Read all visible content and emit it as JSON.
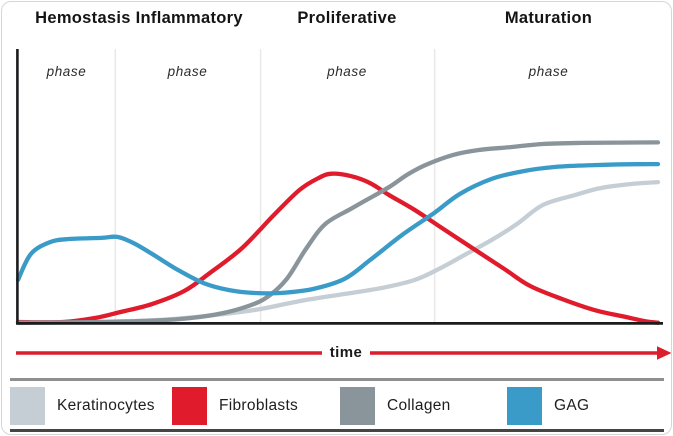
{
  "header": {
    "titles": [
      {
        "label": "Hemostasis Inflammatory"
      },
      {
        "label": "Proliferative"
      },
      {
        "label": "Maturation"
      }
    ],
    "phase_sublabels": [
      "phase",
      "phase",
      "phase",
      "phase"
    ]
  },
  "time_axis": {
    "label": "time",
    "arrow_color": "#da1e2c"
  },
  "legend": [
    {
      "label": "Keratinocytes",
      "color": "#c5ced4"
    },
    {
      "label": "Fibroblasts",
      "color": "#e01b2c"
    },
    {
      "label": "Collagen",
      "color": "#8a949b"
    },
    {
      "label": "GAG",
      "color": "#3a9bc8"
    }
  ],
  "colors": {
    "axis": "#1c1c1e",
    "phase_divider": "#e9e9e9",
    "separator_top": "#8f8f8f",
    "separator_bottom": "#454545",
    "card_border": "#d6d6d6"
  },
  "chart_data": {
    "type": "line",
    "title": "",
    "xlabel": "time",
    "ylabel": "",
    "x_range": [
      0,
      100
    ],
    "y_range": [
      0,
      100
    ],
    "grid": false,
    "legend_position": "bottom",
    "phases": [
      "Hemostasis",
      "Inflammatory",
      "Proliferative",
      "Maturation"
    ],
    "phase_boundaries_x": [
      15.2,
      37.9,
      65.1
    ],
    "draw_order": [
      "Keratinocytes",
      "Fibroblasts",
      "Collagen",
      "GAG"
    ],
    "series": [
      {
        "name": "Keratinocytes",
        "points": [
          [
            0,
            0
          ],
          [
            8,
            0.3
          ],
          [
            16,
            0.6
          ],
          [
            24,
            1.5
          ],
          [
            32,
            3.4
          ],
          [
            38,
            5.4
          ],
          [
            44,
            8.4
          ],
          [
            51,
            11.1
          ],
          [
            57,
            13.5
          ],
          [
            62,
            16.5
          ],
          [
            66,
            21
          ],
          [
            70,
            26.4
          ],
          [
            74,
            31.8
          ],
          [
            78,
            38
          ],
          [
            82,
            45.2
          ],
          [
            87,
            49
          ],
          [
            91,
            51.7
          ],
          [
            96,
            53.3
          ],
          [
            100,
            54
          ]
        ]
      },
      {
        "name": "Fibroblasts",
        "points": [
          [
            0,
            0.4
          ],
          [
            7,
            0.4
          ],
          [
            12,
            1.9
          ],
          [
            16,
            4.2
          ],
          [
            21,
            7.3
          ],
          [
            26,
            12.3
          ],
          [
            30,
            19.2
          ],
          [
            35,
            28.7
          ],
          [
            40,
            41.4
          ],
          [
            44,
            51
          ],
          [
            47,
            55.6
          ],
          [
            49,
            57.2
          ],
          [
            52,
            56.3
          ],
          [
            55,
            53.6
          ],
          [
            58,
            49
          ],
          [
            62,
            43.3
          ],
          [
            66,
            36.8
          ],
          [
            71,
            28.7
          ],
          [
            76,
            20.7
          ],
          [
            80,
            14.2
          ],
          [
            85,
            9.2
          ],
          [
            90,
            5
          ],
          [
            95,
            2.3
          ],
          [
            98,
            0.7
          ],
          [
            100,
            0.1
          ]
        ]
      },
      {
        "name": "Collagen",
        "points": [
          [
            0,
            0.1
          ],
          [
            13,
            0.4
          ],
          [
            21,
            0.9
          ],
          [
            27,
            1.9
          ],
          [
            32,
            3.8
          ],
          [
            36,
            6.5
          ],
          [
            39,
            10
          ],
          [
            42,
            16.9
          ],
          [
            45,
            28.4
          ],
          [
            48,
            37.9
          ],
          [
            52,
            43.7
          ],
          [
            55,
            47.9
          ],
          [
            58,
            52.1
          ],
          [
            61,
            57.1
          ],
          [
            64,
            60.9
          ],
          [
            68,
            64.4
          ],
          [
            72,
            66.3
          ],
          [
            77,
            67.4
          ],
          [
            82,
            68.6
          ],
          [
            88,
            69
          ],
          [
            100,
            69.2
          ]
        ]
      },
      {
        "name": "GAG",
        "points": [
          [
            0,
            16.5
          ],
          [
            2,
            26.4
          ],
          [
            5,
            31
          ],
          [
            8,
            32.2
          ],
          [
            13,
            32.6
          ],
          [
            15.5,
            33
          ],
          [
            18,
            30.7
          ],
          [
            21,
            26.4
          ],
          [
            25,
            20.3
          ],
          [
            29,
            15.3
          ],
          [
            33,
            12.6
          ],
          [
            37,
            11.5
          ],
          [
            41,
            11.5
          ],
          [
            46,
            13
          ],
          [
            51,
            16.9
          ],
          [
            55,
            24.1
          ],
          [
            60,
            33.7
          ],
          [
            65,
            42.1
          ],
          [
            69,
            49.4
          ],
          [
            74,
            55.2
          ],
          [
            79,
            58.2
          ],
          [
            84,
            59.8
          ],
          [
            90,
            60.5
          ],
          [
            95,
            60.8
          ],
          [
            100,
            60.9
          ]
        ]
      }
    ]
  }
}
